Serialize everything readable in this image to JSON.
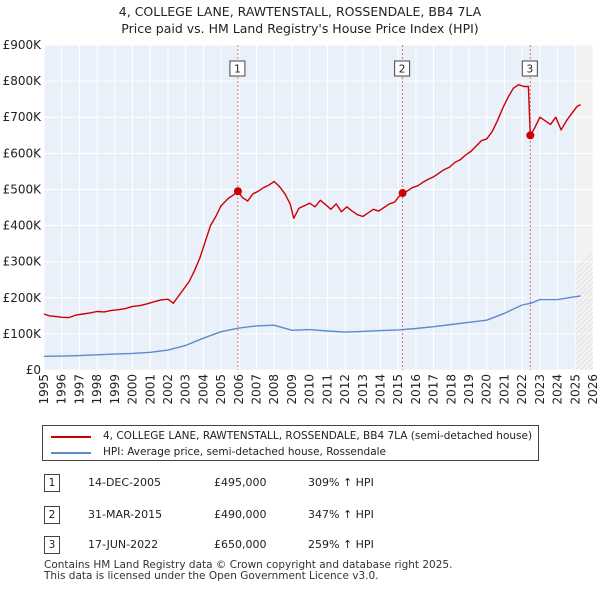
{
  "chart_data": {
    "type": "line",
    "title": "4, COLLEGE LANE, RAWTENSTALL, ROSSENDALE, BB4 7LA",
    "subtitle": "Price paid vs. HM Land Registry's House Price Index (HPI)",
    "xlim": [
      1995,
      2026
    ],
    "ylim": [
      0,
      900000
    ],
    "x_ticks": [
      "1995",
      "1996",
      "1997",
      "1998",
      "1999",
      "2000",
      "2001",
      "2002",
      "2003",
      "2004",
      "2005",
      "2006",
      "2007",
      "2008",
      "2009",
      "2010",
      "2011",
      "2012",
      "2013",
      "2014",
      "2015",
      "2016",
      "2017",
      "2018",
      "2019",
      "2020",
      "2021",
      "2022",
      "2023",
      "2024",
      "2025",
      "2026"
    ],
    "y_ticks": [
      {
        "value": 0,
        "label": "£0"
      },
      {
        "value": 100000,
        "label": "£100K"
      },
      {
        "value": 200000,
        "label": "£200K"
      },
      {
        "value": 300000,
        "label": "£300K"
      },
      {
        "value": 400000,
        "label": "£400K"
      },
      {
        "value": 500000,
        "label": "£500K"
      },
      {
        "value": 600000,
        "label": "£600K"
      },
      {
        "value": 700000,
        "label": "£700K"
      },
      {
        "value": 800000,
        "label": "£800K"
      },
      {
        "value": 900000,
        "label": "£900K"
      }
    ],
    "future_shade_from": 2025.0,
    "colors": {
      "property": "#cc0000",
      "hpi": "#5b8ccc",
      "grid": "#dde3ee",
      "plot_bg": "#eaf0f9",
      "shade": "#f2f2f2",
      "vline": "#e07070"
    },
    "series": [
      {
        "name": "4, COLLEGE LANE, RAWTENSTALL, ROSSENDALE, BB4 7LA (semi-detached house)",
        "color": "#cc0000",
        "points": [
          [
            1995.0,
            155000
          ],
          [
            1995.3,
            150000
          ],
          [
            1995.7,
            148000
          ],
          [
            1996.0,
            146000
          ],
          [
            1996.4,
            145000
          ],
          [
            1996.8,
            152000
          ],
          [
            1997.2,
            155000
          ],
          [
            1997.6,
            158000
          ],
          [
            1998.0,
            162000
          ],
          [
            1998.4,
            161000
          ],
          [
            1998.8,
            165000
          ],
          [
            1999.2,
            167000
          ],
          [
            1999.6,
            170000
          ],
          [
            2000.0,
            176000
          ],
          [
            2000.4,
            178000
          ],
          [
            2000.8,
            183000
          ],
          [
            2001.2,
            189000
          ],
          [
            2001.6,
            194000
          ],
          [
            2002.0,
            196000
          ],
          [
            2002.3,
            185000
          ],
          [
            2002.6,
            205000
          ],
          [
            2002.9,
            225000
          ],
          [
            2003.2,
            245000
          ],
          [
            2003.5,
            275000
          ],
          [
            2003.8,
            310000
          ],
          [
            2004.1,
            355000
          ],
          [
            2004.4,
            400000
          ],
          [
            2004.7,
            425000
          ],
          [
            2005.0,
            455000
          ],
          [
            2005.4,
            475000
          ],
          [
            2005.7,
            485000
          ],
          [
            2005.95,
            495000
          ],
          [
            2006.2,
            478000
          ],
          [
            2006.5,
            468000
          ],
          [
            2006.8,
            488000
          ],
          [
            2007.1,
            495000
          ],
          [
            2007.4,
            505000
          ],
          [
            2007.7,
            512000
          ],
          [
            2008.0,
            522000
          ],
          [
            2008.3,
            508000
          ],
          [
            2008.6,
            488000
          ],
          [
            2008.9,
            460000
          ],
          [
            2009.1,
            420000
          ],
          [
            2009.4,
            448000
          ],
          [
            2009.7,
            455000
          ],
          [
            2010.0,
            462000
          ],
          [
            2010.3,
            452000
          ],
          [
            2010.6,
            470000
          ],
          [
            2010.9,
            458000
          ],
          [
            2011.2,
            445000
          ],
          [
            2011.5,
            460000
          ],
          [
            2011.8,
            438000
          ],
          [
            2012.1,
            452000
          ],
          [
            2012.4,
            440000
          ],
          [
            2012.7,
            430000
          ],
          [
            2013.0,
            425000
          ],
          [
            2013.3,
            435000
          ],
          [
            2013.6,
            445000
          ],
          [
            2013.9,
            440000
          ],
          [
            2014.2,
            450000
          ],
          [
            2014.5,
            460000
          ],
          [
            2014.8,
            465000
          ],
          [
            2015.0,
            478000
          ],
          [
            2015.25,
            490000
          ],
          [
            2015.5,
            495000
          ],
          [
            2015.8,
            505000
          ],
          [
            2016.1,
            510000
          ],
          [
            2016.4,
            520000
          ],
          [
            2016.7,
            528000
          ],
          [
            2017.0,
            535000
          ],
          [
            2017.3,
            545000
          ],
          [
            2017.6,
            555000
          ],
          [
            2017.9,
            562000
          ],
          [
            2018.2,
            575000
          ],
          [
            2018.5,
            582000
          ],
          [
            2018.8,
            595000
          ],
          [
            2019.1,
            605000
          ],
          [
            2019.4,
            620000
          ],
          [
            2019.7,
            635000
          ],
          [
            2020.0,
            640000
          ],
          [
            2020.3,
            660000
          ],
          [
            2020.6,
            690000
          ],
          [
            2020.9,
            725000
          ],
          [
            2021.2,
            755000
          ],
          [
            2021.5,
            780000
          ],
          [
            2021.8,
            790000
          ],
          [
            2022.1,
            785000
          ],
          [
            2022.35,
            785000
          ],
          [
            2022.46,
            650000
          ],
          [
            2022.7,
            670000
          ],
          [
            2023.0,
            700000
          ],
          [
            2023.3,
            690000
          ],
          [
            2023.6,
            680000
          ],
          [
            2023.9,
            700000
          ],
          [
            2024.2,
            665000
          ],
          [
            2024.5,
            690000
          ],
          [
            2024.8,
            710000
          ],
          [
            2025.1,
            730000
          ],
          [
            2025.3,
            735000
          ]
        ]
      },
      {
        "name": "HPI: Average price, semi-detached house, Rossendale",
        "color": "#5b8ccc",
        "points": [
          [
            1995.0,
            38000
          ],
          [
            1996.0,
            38500
          ],
          [
            1997.0,
            40000
          ],
          [
            1998.0,
            42000
          ],
          [
            1999.0,
            44000
          ],
          [
            2000.0,
            46000
          ],
          [
            2001.0,
            49000
          ],
          [
            2002.0,
            55000
          ],
          [
            2003.0,
            68000
          ],
          [
            2004.0,
            88000
          ],
          [
            2005.0,
            106000
          ],
          [
            2006.0,
            116000
          ],
          [
            2007.0,
            122000
          ],
          [
            2008.0,
            124000
          ],
          [
            2009.0,
            110000
          ],
          [
            2010.0,
            112000
          ],
          [
            2011.0,
            108000
          ],
          [
            2012.0,
            105000
          ],
          [
            2013.0,
            107000
          ],
          [
            2014.0,
            109000
          ],
          [
            2015.0,
            111000
          ],
          [
            2016.0,
            115000
          ],
          [
            2017.0,
            120000
          ],
          [
            2018.0,
            126000
          ],
          [
            2019.0,
            132000
          ],
          [
            2020.0,
            138000
          ],
          [
            2021.0,
            157000
          ],
          [
            2022.0,
            180000
          ],
          [
            2022.5,
            185000
          ],
          [
            2023.0,
            195000
          ],
          [
            2024.0,
            195000
          ],
          [
            2025.0,
            203000
          ],
          [
            2025.3,
            205000
          ]
        ]
      }
    ],
    "sales": [
      {
        "label": "1",
        "x": 2005.95,
        "price": 495000
      },
      {
        "label": "2",
        "x": 2015.25,
        "price": 490000
      },
      {
        "label": "3",
        "x": 2022.46,
        "price": 650000
      }
    ]
  },
  "legend": {
    "property": "4, COLLEGE LANE, RAWTENSTALL, ROSSENDALE, BB4 7LA (semi-detached house)",
    "hpi": "HPI: Average price, semi-detached house, Rossendale"
  },
  "transactions": [
    {
      "num": "1",
      "date": "14-DEC-2005",
      "price": "£495,000",
      "hpi": "309% ↑ HPI"
    },
    {
      "num": "2",
      "date": "31-MAR-2015",
      "price": "£490,000",
      "hpi": "347% ↑ HPI"
    },
    {
      "num": "3",
      "date": "17-JUN-2022",
      "price": "£650,000",
      "hpi": "259% ↑ HPI"
    }
  ],
  "footer": {
    "line1": "Contains HM Land Registry data © Crown copyright and database right 2025.",
    "line2": "This data is licensed under the Open Government Licence v3.0."
  }
}
